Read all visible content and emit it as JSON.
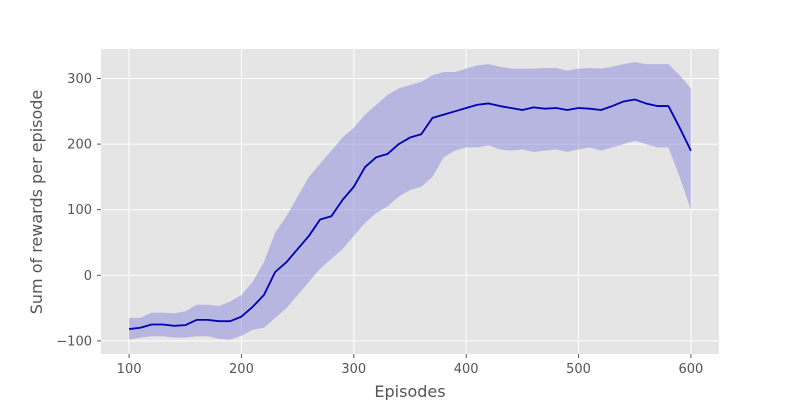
{
  "chart_data": {
    "type": "area",
    "title": "",
    "xlabel": "Episodes",
    "ylabel": "Sum of rewards per episode",
    "xlim": [
      75,
      625
    ],
    "ylim": [
      -120,
      345
    ],
    "xticks": [
      100,
      200,
      300,
      400,
      500,
      600
    ],
    "yticks": [
      -100,
      0,
      100,
      200,
      300
    ],
    "grid": true,
    "background_color": "#e5e5e5",
    "grid_color": "#ffffff",
    "line_color": "#0000b3",
    "band_color": "#8f8fdf",
    "series": [
      {
        "x": [
          100,
          110,
          120,
          130,
          140,
          150,
          160,
          170,
          180,
          190,
          200,
          210,
          220,
          230,
          240,
          250,
          260,
          270,
          280,
          290,
          300,
          310,
          320,
          330,
          340,
          350,
          360,
          370,
          380,
          390,
          400,
          410,
          420,
          430,
          440,
          450,
          460,
          470,
          480,
          490,
          500,
          510,
          520,
          530,
          540,
          550,
          560,
          570,
          580,
          590,
          600
        ],
        "mean": [
          -82,
          -80,
          -75,
          -75,
          -77,
          -76,
          -68,
          -68,
          -70,
          -70,
          -63,
          -48,
          -30,
          5,
          20,
          40,
          60,
          85,
          90,
          115,
          135,
          165,
          180,
          185,
          200,
          210,
          215,
          240,
          245,
          250,
          255,
          260,
          262,
          258,
          255,
          252,
          256,
          254,
          255,
          252,
          255,
          254,
          252,
          258,
          265,
          268,
          262,
          258,
          258,
          225,
          190
        ],
        "lower": [
          -98,
          -95,
          -93,
          -93,
          -95,
          -95,
          -93,
          -93,
          -97,
          -98,
          -92,
          -83,
          -80,
          -65,
          -50,
          -30,
          -10,
          10,
          25,
          40,
          60,
          80,
          95,
          105,
          120,
          130,
          135,
          150,
          180,
          190,
          195,
          195,
          198,
          192,
          190,
          192,
          188,
          190,
          192,
          188,
          192,
          195,
          190,
          195,
          200,
          205,
          200,
          195,
          195,
          150,
          100
        ],
        "upper": [
          -65,
          -65,
          -57,
          -57,
          -58,
          -55,
          -45,
          -45,
          -47,
          -40,
          -30,
          -10,
          20,
          65,
          90,
          120,
          150,
          170,
          190,
          210,
          225,
          245,
          260,
          275,
          285,
          290,
          295,
          305,
          310,
          310,
          315,
          320,
          322,
          318,
          315,
          315,
          315,
          316,
          316,
          312,
          315,
          316,
          315,
          318,
          322,
          325,
          322,
          322,
          322,
          305,
          285
        ]
      }
    ]
  }
}
